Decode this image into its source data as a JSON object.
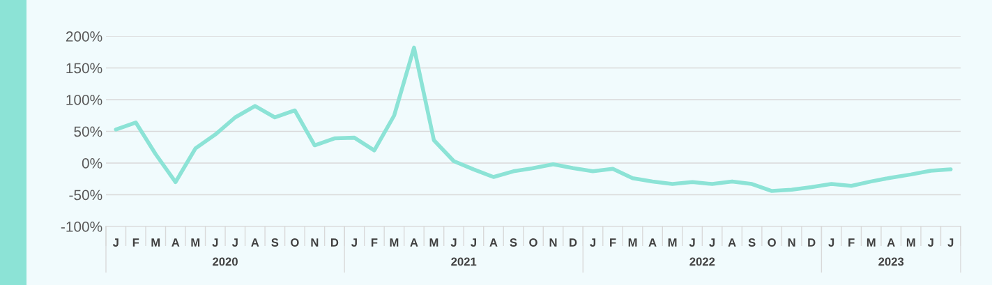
{
  "chart_data": {
    "type": "line",
    "categories": [
      "J",
      "F",
      "M",
      "A",
      "M",
      "J",
      "J",
      "A",
      "S",
      "O",
      "N",
      "D",
      "J",
      "F",
      "M",
      "A",
      "M",
      "J",
      "J",
      "A",
      "S",
      "O",
      "N",
      "D",
      "J",
      "F",
      "M",
      "A",
      "M",
      "J",
      "J",
      "A",
      "S",
      "O",
      "N",
      "D",
      "J",
      "F",
      "M",
      "A",
      "M",
      "J",
      "J"
    ],
    "series": [
      {
        "color": "#8ce3d6",
        "values": [
          53,
          64,
          14,
          -30,
          23,
          45,
          72,
          90,
          72,
          83,
          28,
          39,
          40,
          20,
          75,
          182,
          36,
          3,
          -10,
          -22,
          -13,
          -8,
          -2,
          -8,
          -13,
          -9,
          -24,
          -29,
          -33,
          -30,
          -33,
          -29,
          -33,
          -44,
          -42,
          -38,
          -33,
          -36,
          -29,
          -23,
          -18,
          -12,
          -10
        ]
      }
    ],
    "ylim": [
      -100,
      200
    ],
    "yticks": [
      {
        "value": -100,
        "label": "-100%"
      },
      {
        "value": -50,
        "label": "-50%"
      },
      {
        "value": 0,
        "label": "0%"
      },
      {
        "value": 50,
        "label": "50%"
      },
      {
        "value": 100,
        "label": "100%"
      },
      {
        "value": 150,
        "label": "150%"
      },
      {
        "value": 200,
        "label": "200%"
      }
    ],
    "grid": "y",
    "marker": "none",
    "line_style": "solid",
    "annotations": [
      "2020",
      "2021",
      "2022",
      "2023"
    ]
  }
}
